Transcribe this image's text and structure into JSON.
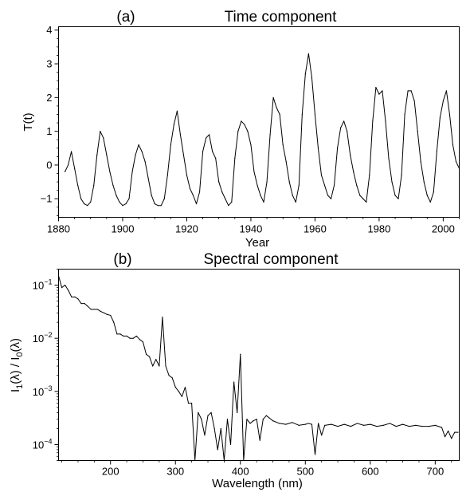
{
  "chart_data": [
    {
      "type": "line",
      "panel_label": "(a)",
      "title": "Time component",
      "xlabel": "Year",
      "ylabel": "T(t)",
      "xlim": [
        1880,
        2005
      ],
      "ylim": [
        -1.55,
        4.1
      ],
      "xticks": [
        1880,
        1900,
        1920,
        1940,
        1960,
        1980,
        2000
      ],
      "yticks": [
        -1,
        0,
        1,
        2,
        3,
        4
      ],
      "grid": false,
      "line_color": "#000000",
      "series": [
        {
          "x": [
            1882,
            1883,
            1884,
            1885,
            1886,
            1887,
            1888,
            1889,
            1890,
            1891,
            1892,
            1893,
            1894,
            1895,
            1896,
            1897,
            1898,
            1899,
            1900,
            1901,
            1902,
            1903,
            1904,
            1905,
            1906,
            1907,
            1908,
            1909,
            1910,
            1911,
            1912,
            1913,
            1914,
            1915,
            1916,
            1917,
            1918,
            1919,
            1920,
            1921,
            1922,
            1923,
            1924,
            1925,
            1926,
            1927,
            1928,
            1929,
            1930,
            1931,
            1932,
            1933,
            1934,
            1935,
            1936,
            1937,
            1938,
            1939,
            1940,
            1941,
            1942,
            1943,
            1944,
            1945,
            1946,
            1947,
            1948,
            1949,
            1950,
            1951,
            1952,
            1953,
            1954,
            1955,
            1956,
            1957,
            1958,
            1959,
            1960,
            1961,
            1962,
            1963,
            1964,
            1965,
            1966,
            1967,
            1968,
            1969,
            1970,
            1971,
            1972,
            1973,
            1974,
            1975,
            1976,
            1977,
            1978,
            1979,
            1980,
            1981,
            1982,
            1983,
            1984,
            1985,
            1986,
            1987,
            1988,
            1989,
            1990,
            1991,
            1992,
            1993,
            1994,
            1995,
            1996,
            1997,
            1998,
            1999,
            2000,
            2001,
            2002,
            2003,
            2004,
            2005
          ],
          "values": [
            -0.2,
            0.0,
            0.4,
            -0.1,
            -0.6,
            -1.0,
            -1.15,
            -1.2,
            -1.1,
            -0.6,
            0.3,
            1.0,
            0.8,
            0.3,
            -0.2,
            -0.6,
            -0.9,
            -1.1,
            -1.2,
            -1.15,
            -1.0,
            -0.2,
            0.3,
            0.6,
            0.4,
            0.1,
            -0.4,
            -0.9,
            -1.15,
            -1.2,
            -1.2,
            -1.0,
            -0.3,
            0.6,
            1.2,
            1.6,
            0.9,
            0.3,
            -0.3,
            -0.7,
            -0.9,
            -1.15,
            -0.8,
            0.4,
            0.8,
            0.9,
            0.4,
            0.2,
            -0.5,
            -0.8,
            -1.0,
            -1.2,
            -1.1,
            0.2,
            1.0,
            1.3,
            1.2,
            1.0,
            0.6,
            -0.2,
            -0.6,
            -0.9,
            -1.1,
            -0.5,
            0.9,
            2.0,
            1.7,
            1.5,
            0.6,
            0.1,
            -0.5,
            -0.9,
            -1.1,
            -0.6,
            1.5,
            2.7,
            3.3,
            2.6,
            1.5,
            0.5,
            -0.3,
            -0.6,
            -0.9,
            -1.0,
            -0.6,
            0.5,
            1.1,
            1.3,
            1.0,
            0.3,
            -0.2,
            -0.6,
            -0.9,
            -1.0,
            -1.1,
            -0.3,
            1.3,
            2.3,
            2.1,
            2.2,
            1.3,
            0.2,
            -0.5,
            -0.9,
            -1.0,
            -0.3,
            1.5,
            2.2,
            2.2,
            1.9,
            1.0,
            0.1,
            -0.5,
            -0.9,
            -1.1,
            -0.8,
            0.4,
            1.4,
            1.9,
            2.2,
            1.5,
            0.6,
            0.1,
            -0.1
          ]
        }
      ]
    },
    {
      "type": "line",
      "panel_label": "(b)",
      "title": "Spectral component",
      "xlabel": "Wavelength (nm)",
      "ylabel": "I1(λ) / I0(λ)",
      "xlim": [
        120,
        737
      ],
      "ylim": [
        5e-05,
        0.2
      ],
      "yscale": "log",
      "xticks": [
        200,
        300,
        400,
        500,
        600,
        700
      ],
      "yticks": [
        0.0001,
        0.001,
        0.01,
        0.1
      ],
      "ytick_labels": [
        {
          "base": "10",
          "exp": "−4"
        },
        {
          "base": "10",
          "exp": "−3"
        },
        {
          "base": "10",
          "exp": "−2"
        },
        {
          "base": "10",
          "exp": "−1"
        }
      ],
      "grid": false,
      "line_color": "#000000",
      "series": [
        {
          "x": [
            120,
            125,
            130,
            135,
            140,
            145,
            150,
            155,
            160,
            165,
            170,
            175,
            180,
            185,
            190,
            195,
            200,
            205,
            210,
            215,
            220,
            225,
            230,
            235,
            240,
            245,
            250,
            255,
            260,
            265,
            270,
            275,
            280,
            285,
            290,
            295,
            300,
            305,
            310,
            315,
            320,
            325,
            330,
            335,
            340,
            345,
            350,
            355,
            360,
            365,
            370,
            375,
            380,
            385,
            390,
            395,
            400,
            405,
            410,
            415,
            420,
            425,
            430,
            435,
            440,
            450,
            460,
            470,
            480,
            490,
            500,
            505,
            510,
            515,
            520,
            525,
            530,
            540,
            550,
            560,
            570,
            580,
            590,
            600,
            610,
            620,
            630,
            640,
            650,
            660,
            670,
            680,
            690,
            700,
            710,
            715,
            720,
            725,
            730,
            735
          ],
          "values": [
            0.15,
            0.09,
            0.1,
            0.08,
            0.06,
            0.06,
            0.055,
            0.045,
            0.045,
            0.04,
            0.035,
            0.035,
            0.035,
            0.032,
            0.03,
            0.028,
            0.027,
            0.02,
            0.012,
            0.012,
            0.011,
            0.011,
            0.01,
            0.01,
            0.011,
            0.0095,
            0.0085,
            0.005,
            0.0045,
            0.003,
            0.004,
            0.003,
            0.025,
            0.003,
            0.002,
            0.0018,
            0.0012,
            0.001,
            0.0008,
            0.0012,
            0.0006,
            0.0006,
            4e-05,
            0.0004,
            0.0003,
            0.00015,
            0.00035,
            0.0004,
            0.0002,
            8e-05,
            0.0002,
            4e-05,
            0.0003,
            0.0001,
            0.0015,
            0.0004,
            0.005,
            4e-05,
            0.0003,
            0.00025,
            0.00028,
            0.0003,
            0.00012,
            0.0003,
            0.00035,
            0.00028,
            0.00025,
            0.00024,
            0.00026,
            0.00023,
            0.00024,
            0.00025,
            0.00024,
            6.5e-05,
            0.00025,
            0.00015,
            0.00023,
            0.00024,
            0.00022,
            0.00024,
            0.00022,
            0.00025,
            0.00023,
            0.00024,
            0.00022,
            0.00023,
            0.00025,
            0.00022,
            0.00024,
            0.00022,
            0.00023,
            0.00022,
            0.00022,
            0.00023,
            0.00021,
            0.00014,
            0.00018,
            0.00013,
            0.00017,
            0.00017
          ]
        }
      ]
    }
  ]
}
